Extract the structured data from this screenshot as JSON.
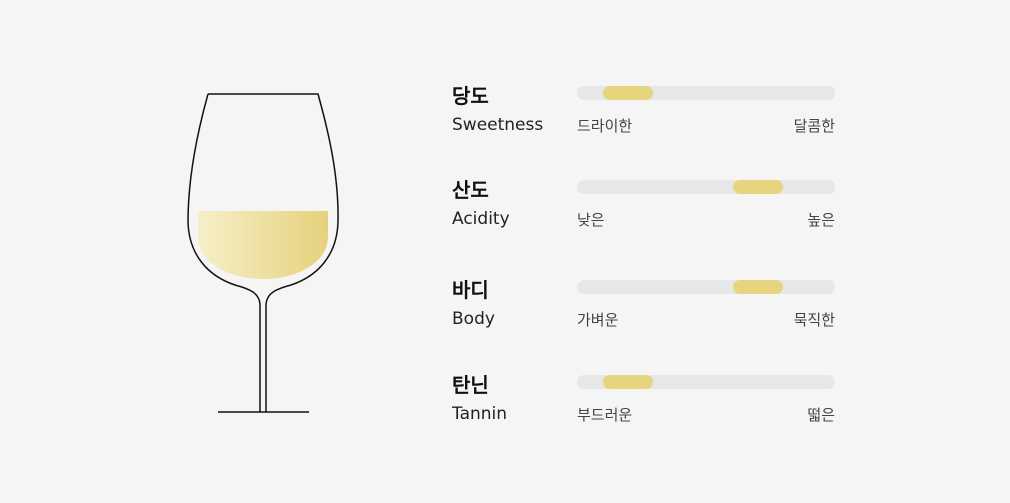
{
  "colors": {
    "background": "#f5f5f5",
    "bar_track": "#e7e7e7",
    "bar_fill": "#e6d57e",
    "wine_light": "#f6efc8",
    "wine_dark": "#e6d27c"
  },
  "glass": {
    "icon": "white-wine-glass-icon"
  },
  "profile": [
    {
      "label_ko": "당도",
      "label_en": "Sweetness",
      "scale_left": "드라이한",
      "scale_right": "달콤한",
      "level_position": 0.1
    },
    {
      "label_ko": "산도",
      "label_en": "Acidity",
      "scale_left": "낮은",
      "scale_right": "높은",
      "level_position": 0.7
    },
    {
      "label_ko": "바디",
      "label_en": "Body",
      "scale_left": "가벼운",
      "scale_right": "묵직한",
      "level_position": 0.7
    },
    {
      "label_ko": "탄닌",
      "label_en": "Tannin",
      "scale_left": "부드러운",
      "scale_right": "떫은",
      "level_position": 0.1
    }
  ]
}
